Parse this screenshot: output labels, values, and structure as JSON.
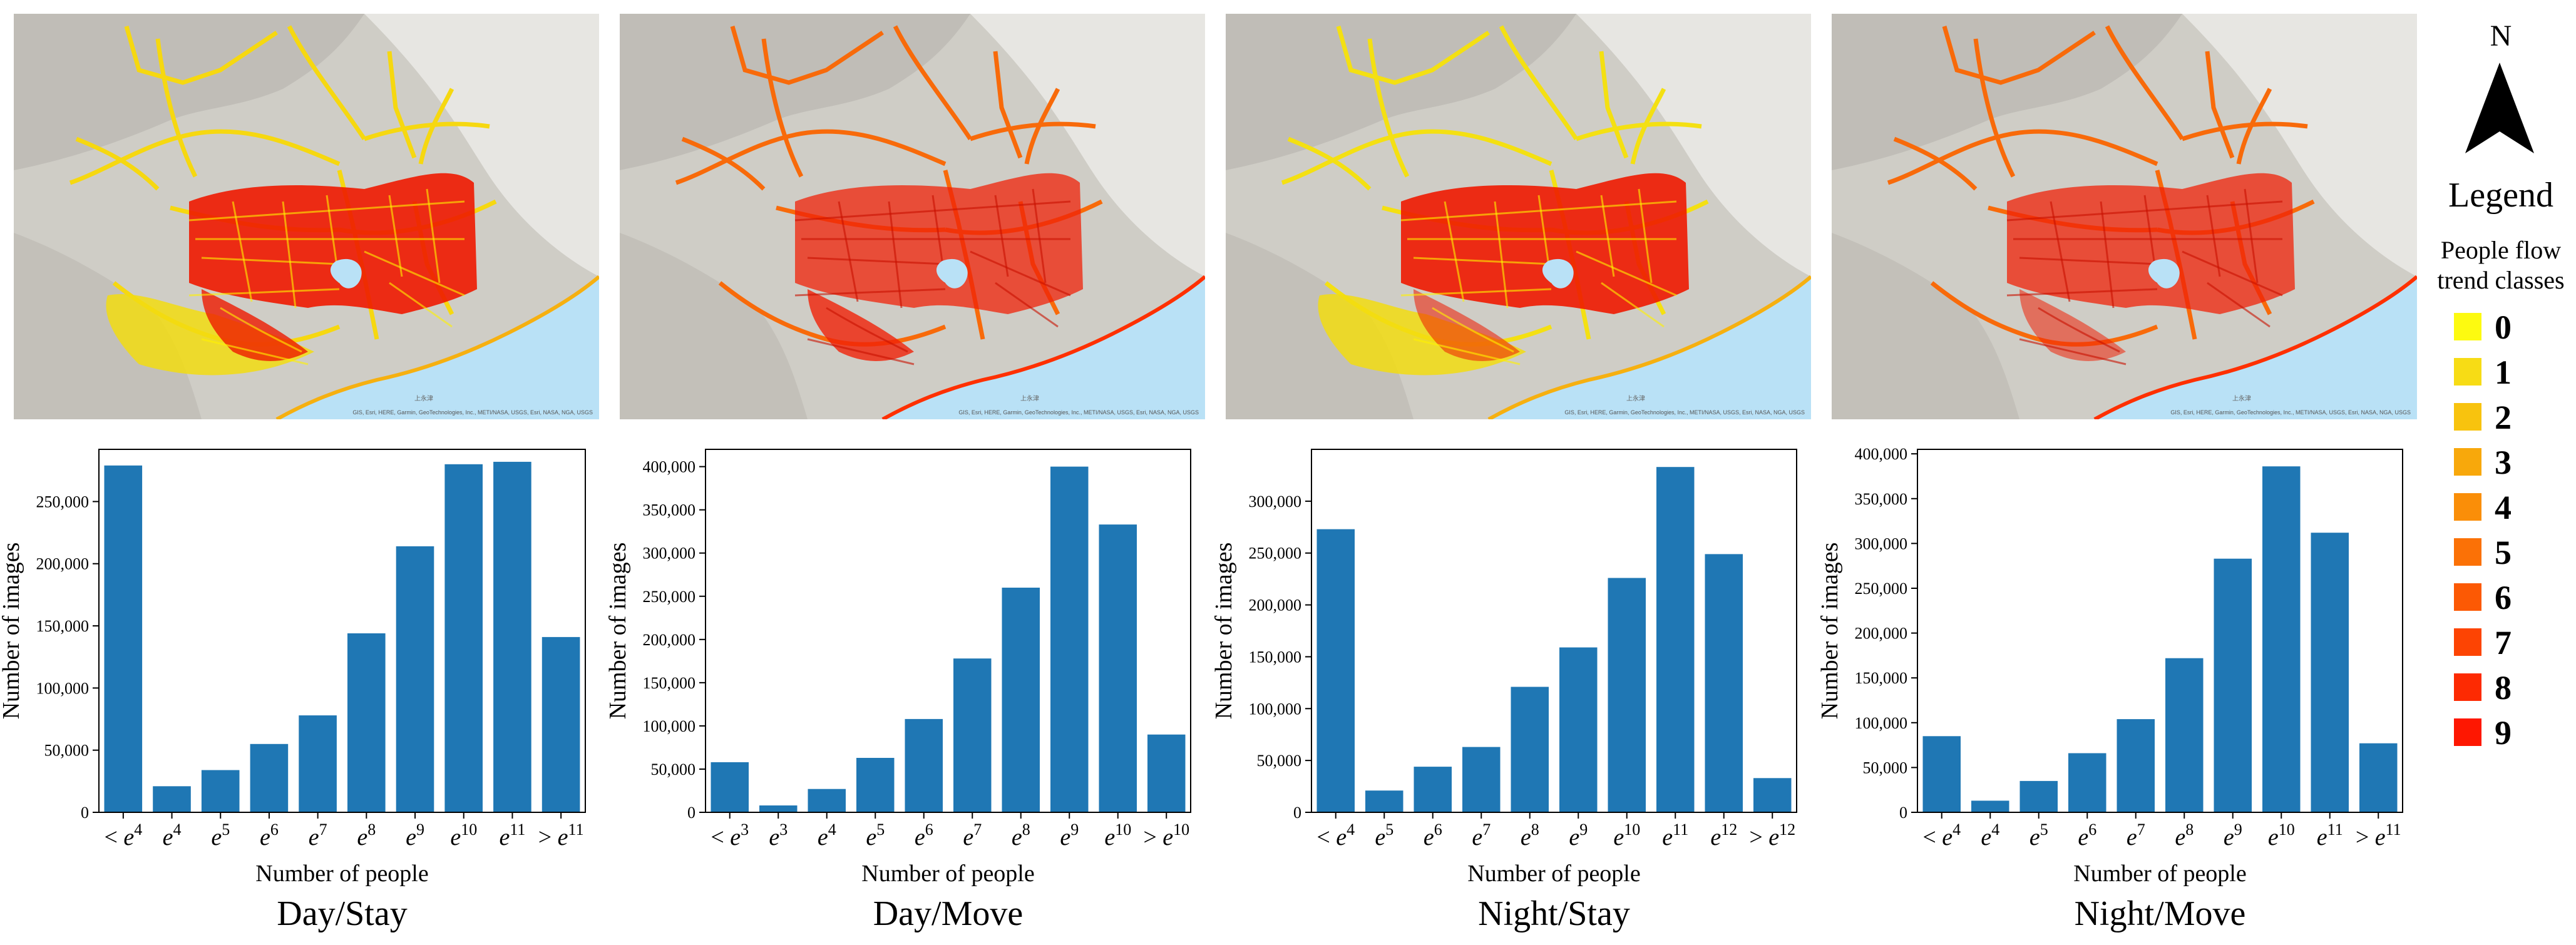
{
  "colors": {
    "bar": "#1f77b4",
    "sea": "#b9e1f6",
    "terrain": "#cfcdc6",
    "road_dense": "#ee1a00",
    "road_sparse": "#f2dc10"
  },
  "panels": [
    {
      "label": "Day/Stay",
      "map_style": "day_stay"
    },
    {
      "label": "Day/Move",
      "map_style": "day_move"
    },
    {
      "label": "Night/Stay",
      "map_style": "night_stay"
    },
    {
      "label": "Night/Move",
      "map_style": "night_move"
    }
  ],
  "maps": {
    "attribution": "GIS, Esri, HERE, Garmin, GeoTechnologies, Inc., METI/NASA, USGS, Esri, NASA, NGA, USGS",
    "place_label": "上永津"
  },
  "legend": {
    "north_label": "N",
    "title": "Legend",
    "subtitle_line1": "People flow",
    "subtitle_line2": "trend classes",
    "classes": [
      {
        "value": "0",
        "color": "#fdfa10"
      },
      {
        "value": "1",
        "color": "#f7dc15"
      },
      {
        "value": "2",
        "color": "#f8c30e"
      },
      {
        "value": "3",
        "color": "#f8a80b"
      },
      {
        "value": "4",
        "color": "#fa8e08"
      },
      {
        "value": "5",
        "color": "#fb7106"
      },
      {
        "value": "6",
        "color": "#fc5904"
      },
      {
        "value": "7",
        "color": "#fd4403"
      },
      {
        "value": "8",
        "color": "#fd2a02"
      },
      {
        "value": "9",
        "color": "#fe1701"
      }
    ]
  },
  "chart_data": [
    {
      "type": "bar",
      "title": "Day/Stay",
      "xlabel": "Number of people",
      "ylabel": "Number of images",
      "ylim": [
        0,
        292000
      ],
      "yticks": [
        0,
        50000,
        100000,
        150000,
        200000,
        250000
      ],
      "ytick_labels": [
        "0",
        "50,000",
        "100,000",
        "150,000",
        "200,000",
        "250,000"
      ],
      "categories": [
        {
          "prefix": "< ",
          "exp": "4"
        },
        {
          "prefix": "",
          "exp": "4"
        },
        {
          "prefix": "",
          "exp": "5"
        },
        {
          "prefix": "",
          "exp": "6"
        },
        {
          "prefix": "",
          "exp": "7"
        },
        {
          "prefix": "",
          "exp": "8"
        },
        {
          "prefix": "",
          "exp": "9"
        },
        {
          "prefix": "",
          "exp": "10"
        },
        {
          "prefix": "",
          "exp": "11"
        },
        {
          "prefix": "> ",
          "exp": "11"
        }
      ],
      "values": [
        279000,
        21000,
        34000,
        55000,
        78000,
        144000,
        214000,
        280000,
        282000,
        141000
      ]
    },
    {
      "type": "bar",
      "title": "Day/Move",
      "xlabel": "Number of people",
      "ylabel": "Number of images",
      "ylim": [
        0,
        420000
      ],
      "yticks": [
        0,
        50000,
        100000,
        150000,
        200000,
        250000,
        300000,
        350000,
        400000
      ],
      "ytick_labels": [
        "0",
        "50,000",
        "100,000",
        "150,000",
        "200,000",
        "250,000",
        "300,000",
        "350,000",
        "400,000"
      ],
      "categories": [
        {
          "prefix": "< ",
          "exp": "3"
        },
        {
          "prefix": "",
          "exp": "3"
        },
        {
          "prefix": "",
          "exp": "4"
        },
        {
          "prefix": "",
          "exp": "5"
        },
        {
          "prefix": "",
          "exp": "6"
        },
        {
          "prefix": "",
          "exp": "7"
        },
        {
          "prefix": "",
          "exp": "8"
        },
        {
          "prefix": "",
          "exp": "9"
        },
        {
          "prefix": "",
          "exp": "10"
        },
        {
          "prefix": "> ",
          "exp": "10"
        }
      ],
      "values": [
        58000,
        8000,
        27000,
        63000,
        108000,
        178000,
        260000,
        400000,
        333000,
        90000
      ]
    },
    {
      "type": "bar",
      "title": "Night/Stay",
      "xlabel": "Number of people",
      "ylabel": "Number of images",
      "ylim": [
        0,
        350000
      ],
      "yticks": [
        0,
        50000,
        100000,
        150000,
        200000,
        250000,
        300000
      ],
      "ytick_labels": [
        "0",
        "50,000",
        "100,000",
        "150,000",
        "200,000",
        "250,000",
        "300,000"
      ],
      "categories": [
        {
          "prefix": "< ",
          "exp": "4"
        },
        {
          "prefix": "",
          "exp": "5"
        },
        {
          "prefix": "",
          "exp": "6"
        },
        {
          "prefix": "",
          "exp": "7"
        },
        {
          "prefix": "",
          "exp": "8"
        },
        {
          "prefix": "",
          "exp": "9"
        },
        {
          "prefix": "",
          "exp": "10"
        },
        {
          "prefix": "",
          "exp": "11"
        },
        {
          "prefix": "",
          "exp": "12"
        },
        {
          "prefix": "> ",
          "exp": "12"
        }
      ],
      "values": [
        273000,
        21000,
        44000,
        63000,
        121000,
        159000,
        226000,
        333000,
        249000,
        33000
      ]
    },
    {
      "type": "bar",
      "title": "Night/Move",
      "xlabel": "Number of people",
      "ylabel": "Number of images",
      "ylim": [
        0,
        405000
      ],
      "yticks": [
        0,
        50000,
        100000,
        150000,
        200000,
        250000,
        300000,
        350000,
        400000
      ],
      "ytick_labels": [
        "0",
        "50,000",
        "100,000",
        "150,000",
        "200,000",
        "250,000",
        "300,000",
        "350,000",
        "400,000"
      ],
      "categories": [
        {
          "prefix": "< ",
          "exp": "4"
        },
        {
          "prefix": "",
          "exp": "4"
        },
        {
          "prefix": "",
          "exp": "5"
        },
        {
          "prefix": "",
          "exp": "6"
        },
        {
          "prefix": "",
          "exp": "7"
        },
        {
          "prefix": "",
          "exp": "8"
        },
        {
          "prefix": "",
          "exp": "9"
        },
        {
          "prefix": "",
          "exp": "10"
        },
        {
          "prefix": "",
          "exp": "11"
        },
        {
          "prefix": "> ",
          "exp": "11"
        }
      ],
      "values": [
        85000,
        13000,
        35000,
        66000,
        104000,
        172000,
        283000,
        386000,
        312000,
        77000
      ]
    }
  ]
}
